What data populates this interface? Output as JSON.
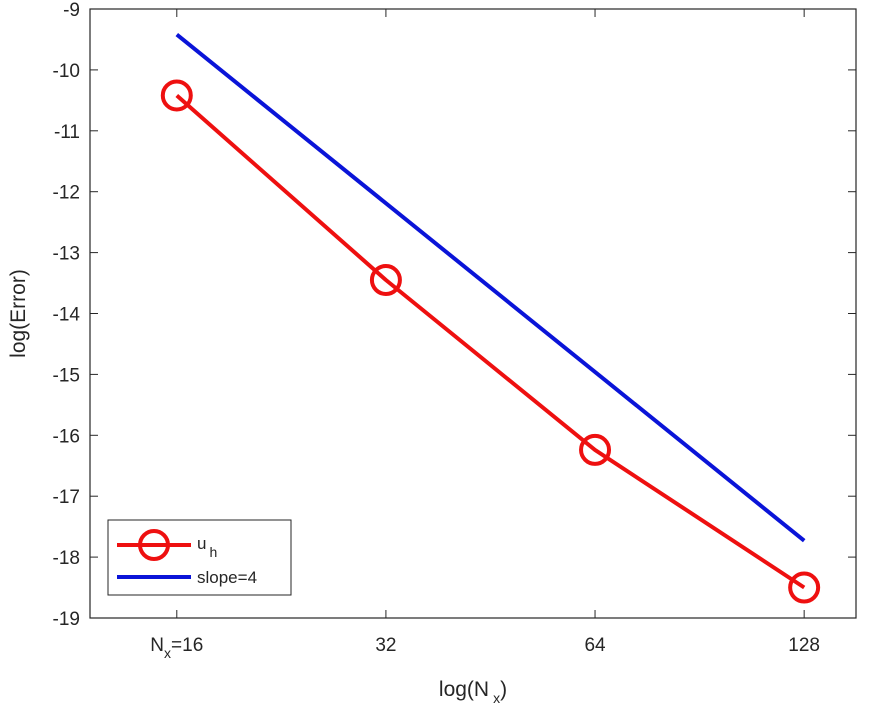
{
  "chart_data": {
    "type": "line",
    "xlabel": "log(N_x)",
    "xlabel_parts": {
      "pre": "log(N",
      "sub": "x",
      "post": ")"
    },
    "ylabel": "log(Error)",
    "xscale": "log2",
    "xlim": [
      12,
      152
    ],
    "ylim": [
      -19,
      -9
    ],
    "x_ticks": [
      16,
      32,
      64,
      128
    ],
    "x_tick_labels": [
      {
        "pre": "N",
        "sub": "x",
        "post": "=16"
      },
      {
        "pre": "32",
        "sub": "",
        "post": ""
      },
      {
        "pre": "64",
        "sub": "",
        "post": ""
      },
      {
        "pre": "128",
        "sub": "",
        "post": ""
      }
    ],
    "y_ticks": [
      -9,
      -10,
      -11,
      -12,
      -13,
      -14,
      -15,
      -16,
      -17,
      -18,
      -19
    ],
    "y_tick_labels": [
      "-9",
      "-10",
      "-11",
      "-12",
      "-13",
      "-14",
      "-15",
      "-16",
      "-17",
      "-18",
      "-19"
    ],
    "grid": false,
    "legend_position": "bottom-left",
    "series": [
      {
        "name": "u_h",
        "name_parts": {
          "pre": "u",
          "sub": "h"
        },
        "x": [
          16,
          32,
          64,
          128
        ],
        "y": [
          -10.42,
          -13.45,
          -16.24,
          -18.5
        ],
        "color": "#ee1010",
        "marker": "circle"
      },
      {
        "name": "slope=4",
        "name_parts": {
          "pre": "slope=4",
          "sub": ""
        },
        "x": [
          16,
          128
        ],
        "y": [
          -9.42,
          -17.73
        ],
        "color": "#0a14d8",
        "marker": "none"
      }
    ]
  }
}
